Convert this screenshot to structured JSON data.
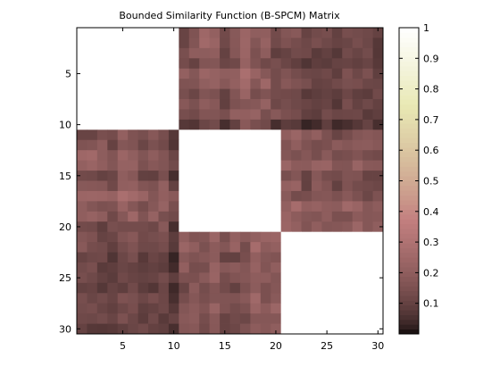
{
  "chart_data": {
    "type": "heatmap",
    "title": "Bounded Similarity Function (B-SPCM) Matrix",
    "xlabel": "",
    "ylabel": "",
    "rows": 30,
    "cols": 30,
    "x_ticks": [
      5,
      10,
      15,
      20,
      25,
      30
    ],
    "y_ticks": [
      5,
      10,
      15,
      20,
      25,
      30
    ],
    "x_tick_labels": [
      "5",
      "10",
      "15",
      "20",
      "25",
      "30"
    ],
    "y_tick_labels": [
      "5",
      "10",
      "15",
      "20",
      "25",
      "30"
    ],
    "colormap": "pink",
    "color_range": [
      0,
      1
    ],
    "colorbar_ticks": [
      0.1,
      0.2,
      0.3,
      0.4,
      0.5,
      0.6,
      0.7,
      0.8,
      0.9,
      1
    ],
    "colorbar_tick_labels": [
      "0.1",
      "0.2",
      "0.3",
      "0.4",
      "0.5",
      "0.6",
      "0.7",
      "0.8",
      "0.9",
      "1"
    ],
    "blocks": [
      {
        "rows": [
          1,
          10
        ],
        "cols": [
          1,
          10
        ],
        "value": 1
      },
      {
        "rows": [
          11,
          20
        ],
        "cols": [
          11,
          20
        ],
        "value": 1
      },
      {
        "rows": [
          21,
          30
        ],
        "cols": [
          21,
          30
        ],
        "value": 1
      },
      {
        "rows": [
          1,
          10
        ],
        "cols": [
          11,
          20
        ],
        "value_range": [
          0.02,
          0.35
        ],
        "typical": 0.22
      },
      {
        "rows": [
          11,
          20
        ],
        "cols": [
          1,
          10
        ],
        "value_range": [
          0.02,
          0.35
        ],
        "typical": 0.22
      },
      {
        "rows": [
          1,
          10
        ],
        "cols": [
          21,
          30
        ],
        "value_range": [
          0.0,
          0.22
        ],
        "typical": 0.1
      },
      {
        "rows": [
          21,
          30
        ],
        "cols": [
          1,
          10
        ],
        "value_range": [
          0.0,
          0.22
        ],
        "typical": 0.1
      },
      {
        "rows": [
          11,
          20
        ],
        "cols": [
          21,
          30
        ],
        "value_range": [
          0.02,
          0.3
        ],
        "typical": 0.15
      },
      {
        "rows": [
          21,
          30
        ],
        "cols": [
          11,
          20
        ],
        "value_range": [
          0.02,
          0.3
        ],
        "typical": 0.15
      }
    ],
    "notes": "Diagonal 10x10 blocks are 1 (white); off-diagonal values vary per cell between the stated ranges."
  }
}
